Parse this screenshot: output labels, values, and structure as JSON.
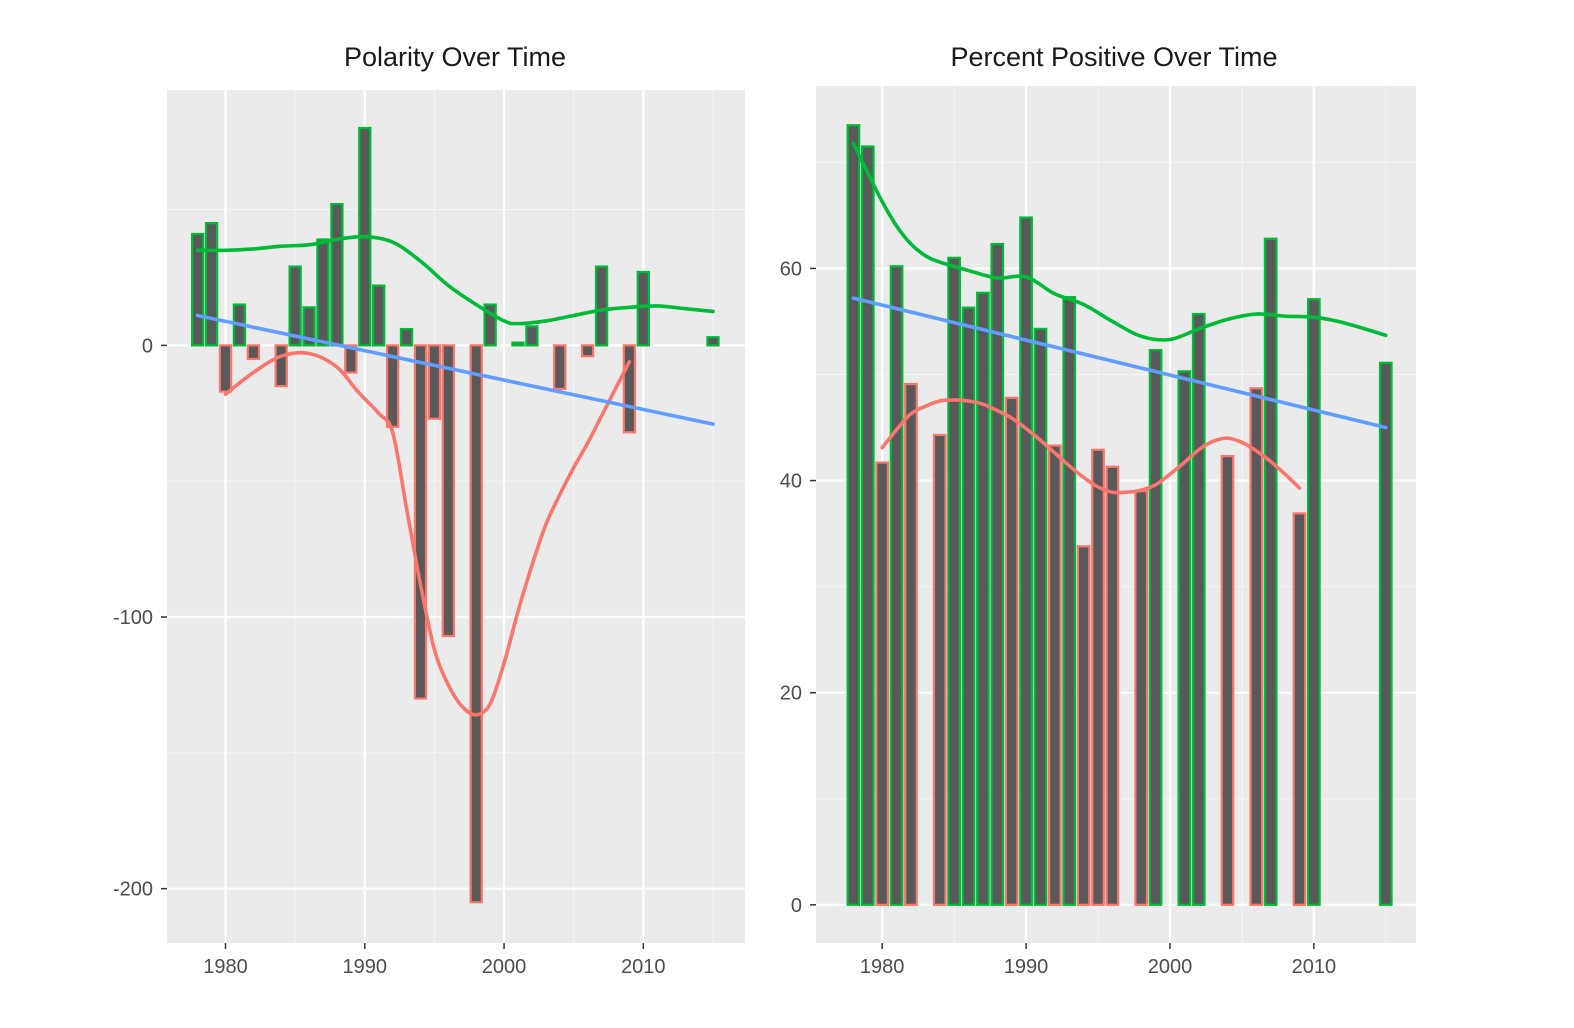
{
  "colors": {
    "panel": "#EBEBEB",
    "grid": "#FFFFFF",
    "bar_fill": "#595959",
    "positive": "#00BA38",
    "negative": "#F8766D",
    "trend": "#619CFF",
    "tick_text": "#4D4D4D",
    "title_text": "#1A1A1A"
  },
  "chart_data": [
    {
      "type": "bar",
      "title": "Polarity Over Time",
      "xlabel": "",
      "ylabel": "",
      "xlim": [
        1975.8,
        2017.3
      ],
      "ylim": [
        -220,
        94
      ],
      "x_ticks": [
        1980,
        1990,
        2000,
        2010
      ],
      "x_tick_labels": [
        "1980",
        "1990",
        "2000",
        "2010"
      ],
      "y_ticks": [
        0,
        -100,
        -200
      ],
      "y_tick_labels": [
        "0",
        "-100",
        "-200"
      ],
      "grid": true,
      "legend": "none",
      "bar_width": 0.8,
      "bars": [
        {
          "x": 1978,
          "value": 41,
          "sign": "positive"
        },
        {
          "x": 1979,
          "value": 45,
          "sign": "positive"
        },
        {
          "x": 1980,
          "value": -17,
          "sign": "negative"
        },
        {
          "x": 1981,
          "value": 15,
          "sign": "positive"
        },
        {
          "x": 1982,
          "value": -5,
          "sign": "negative"
        },
        {
          "x": 1984,
          "value": -15,
          "sign": "negative"
        },
        {
          "x": 1985,
          "value": 29,
          "sign": "positive"
        },
        {
          "x": 1986,
          "value": 14,
          "sign": "positive"
        },
        {
          "x": 1987,
          "value": 39,
          "sign": "positive"
        },
        {
          "x": 1988,
          "value": 52,
          "sign": "positive"
        },
        {
          "x": 1989,
          "value": -10,
          "sign": "negative"
        },
        {
          "x": 1990,
          "value": 80,
          "sign": "positive"
        },
        {
          "x": 1991,
          "value": 22,
          "sign": "positive"
        },
        {
          "x": 1992,
          "value": -30,
          "sign": "negative"
        },
        {
          "x": 1993,
          "value": 6,
          "sign": "positive"
        },
        {
          "x": 1994,
          "value": -130,
          "sign": "negative"
        },
        {
          "x": 1995,
          "value": -27,
          "sign": "negative"
        },
        {
          "x": 1996,
          "value": -107,
          "sign": "negative"
        },
        {
          "x": 1998,
          "value": -205,
          "sign": "negative"
        },
        {
          "x": 1999,
          "value": 15,
          "sign": "positive"
        },
        {
          "x": 2001,
          "value": 1,
          "sign": "positive"
        },
        {
          "x": 2002,
          "value": 7,
          "sign": "positive"
        },
        {
          "x": 2004,
          "value": -16,
          "sign": "negative"
        },
        {
          "x": 2006,
          "value": -4,
          "sign": "negative"
        },
        {
          "x": 2007,
          "value": 29,
          "sign": "positive"
        },
        {
          "x": 2009,
          "value": -32,
          "sign": "negative"
        },
        {
          "x": 2010,
          "value": 27,
          "sign": "positive"
        },
        {
          "x": 2015,
          "value": 3,
          "sign": "positive"
        }
      ],
      "lines": [
        {
          "kind": "smooth",
          "sign": "positive",
          "points": [
            [
              1978,
              35
            ],
            [
              1980,
              35
            ],
            [
              1982,
              35.5
            ],
            [
              1984,
              36.5
            ],
            [
              1986,
              37
            ],
            [
              1988,
              39
            ],
            [
              1990,
              40
            ],
            [
              1992,
              38
            ],
            [
              1994,
              31
            ],
            [
              1996,
              22
            ],
            [
              1998,
              15
            ],
            [
              2000,
              9
            ],
            [
              2001,
              8
            ],
            [
              2003,
              9
            ],
            [
              2005,
              11
            ],
            [
              2007,
              13
            ],
            [
              2009,
              14
            ],
            [
              2011,
              14.5
            ],
            [
              2013,
              13.5
            ],
            [
              2015,
              12.5
            ]
          ]
        },
        {
          "kind": "smooth",
          "sign": "negative",
          "points": [
            [
              1980,
              -18
            ],
            [
              1982,
              -10
            ],
            [
              1984,
              -4
            ],
            [
              1986,
              -3
            ],
            [
              1988,
              -8
            ],
            [
              1989.5,
              -17
            ],
            [
              1991,
              -25
            ],
            [
              1992,
              -32
            ],
            [
              1993,
              -60
            ],
            [
              1994,
              -88
            ],
            [
              1995,
              -112
            ],
            [
              1996,
              -125
            ],
            [
              1997,
              -133
            ],
            [
              1998,
              -136
            ],
            [
              1999,
              -132
            ],
            [
              2000,
              -117
            ],
            [
              2001,
              -98
            ],
            [
              2002,
              -81
            ],
            [
              2003,
              -66
            ],
            [
              2004,
              -55
            ],
            [
              2005,
              -45
            ],
            [
              2006,
              -36
            ],
            [
              2007,
              -26
            ],
            [
              2008,
              -16
            ],
            [
              2009,
              -6
            ]
          ]
        },
        {
          "kind": "linear",
          "sign": "trend",
          "points": [
            [
              1978,
              11
            ],
            [
              2015,
              -29
            ]
          ]
        }
      ]
    },
    {
      "type": "bar",
      "title": "Percent Positive Over Time",
      "xlabel": "",
      "ylabel": "",
      "xlim": [
        1975.4,
        2017.1
      ],
      "ylim": [
        -3.6,
        77.2
      ],
      "x_ticks": [
        1980,
        1990,
        2000,
        2010
      ],
      "x_tick_labels": [
        "1980",
        "1990",
        "2000",
        "2010"
      ],
      "y_ticks": [
        0,
        20,
        40,
        60
      ],
      "y_tick_labels": [
        "0",
        "20",
        "40",
        "60"
      ],
      "grid": true,
      "legend": "none",
      "bar_width": 0.8,
      "bars": [
        {
          "x": 1978,
          "value": 73.5,
          "sign": "positive"
        },
        {
          "x": 1979,
          "value": 71.5,
          "sign": "positive"
        },
        {
          "x": 1980,
          "value": 41.7,
          "sign": "negative"
        },
        {
          "x": 1981,
          "value": 60.2,
          "sign": "positive"
        },
        {
          "x": 1982,
          "value": 49.1,
          "sign": "negative"
        },
        {
          "x": 1984,
          "value": 44.3,
          "sign": "negative"
        },
        {
          "x": 1985,
          "value": 61.0,
          "sign": "positive"
        },
        {
          "x": 1986,
          "value": 56.3,
          "sign": "positive"
        },
        {
          "x": 1987,
          "value": 57.7,
          "sign": "positive"
        },
        {
          "x": 1988,
          "value": 62.3,
          "sign": "positive"
        },
        {
          "x": 1989,
          "value": 47.8,
          "sign": "negative"
        },
        {
          "x": 1990,
          "value": 64.8,
          "sign": "positive"
        },
        {
          "x": 1991,
          "value": 54.3,
          "sign": "positive"
        },
        {
          "x": 1992,
          "value": 43.3,
          "sign": "negative"
        },
        {
          "x": 1993,
          "value": 57.3,
          "sign": "positive"
        },
        {
          "x": 1994,
          "value": 33.8,
          "sign": "negative"
        },
        {
          "x": 1995,
          "value": 42.9,
          "sign": "negative"
        },
        {
          "x": 1996,
          "value": 41.3,
          "sign": "negative"
        },
        {
          "x": 1998,
          "value": 39.0,
          "sign": "negative"
        },
        {
          "x": 1999,
          "value": 52.3,
          "sign": "positive"
        },
        {
          "x": 2001,
          "value": 50.3,
          "sign": "positive"
        },
        {
          "x": 2002,
          "value": 55.7,
          "sign": "positive"
        },
        {
          "x": 2004,
          "value": 42.3,
          "sign": "negative"
        },
        {
          "x": 2006,
          "value": 48.7,
          "sign": "negative"
        },
        {
          "x": 2007,
          "value": 62.8,
          "sign": "positive"
        },
        {
          "x": 2009,
          "value": 36.9,
          "sign": "negative"
        },
        {
          "x": 2010,
          "value": 57.1,
          "sign": "positive"
        },
        {
          "x": 2015,
          "value": 51.1,
          "sign": "positive"
        }
      ],
      "lines": [
        {
          "kind": "smooth",
          "sign": "positive",
          "points": [
            [
              1978,
              71.8
            ],
            [
              1979,
              69
            ],
            [
              1980,
              66.3
            ],
            [
              1981,
              64
            ],
            [
              1982,
              62.3
            ],
            [
              1983,
              61.2
            ],
            [
              1984,
              60.6
            ],
            [
              1986,
              59.8
            ],
            [
              1988,
              59.1
            ],
            [
              1990,
              59.2
            ],
            [
              1992,
              57.6
            ],
            [
              1994,
              56.6
            ],
            [
              1996,
              55
            ],
            [
              1998,
              53.6
            ],
            [
              2000,
              53.3
            ],
            [
              2002,
              54.3
            ],
            [
              2004,
              55.2
            ],
            [
              2006,
              55.7
            ],
            [
              2008,
              55.5
            ],
            [
              2010,
              55.4
            ],
            [
              2012,
              54.9
            ],
            [
              2015,
              53.7
            ]
          ]
        },
        {
          "kind": "smooth",
          "sign": "negative",
          "points": [
            [
              1980,
              43.1
            ],
            [
              1981,
              44.8
            ],
            [
              1982,
              46.3
            ],
            [
              1983,
              47.0
            ],
            [
              1984,
              47.5
            ],
            [
              1985,
              47.6
            ],
            [
              1986,
              47.5
            ],
            [
              1987,
              47.2
            ],
            [
              1988,
              46.6
            ],
            [
              1989,
              45.9
            ],
            [
              1990,
              44.9
            ],
            [
              1991,
              43.8
            ],
            [
              1992,
              42.6
            ],
            [
              1993,
              41.4
            ],
            [
              1994,
              40.3
            ],
            [
              1995,
              39.4
            ],
            [
              1996,
              38.9
            ],
            [
              1997,
              38.9
            ],
            [
              1998,
              39.1
            ],
            [
              1999,
              39.6
            ],
            [
              2000,
              40.6
            ],
            [
              2001,
              41.7
            ],
            [
              2002,
              42.9
            ],
            [
              2003,
              43.7
            ],
            [
              2004,
              44.0
            ],
            [
              2005,
              43.6
            ],
            [
              2006,
              42.8
            ],
            [
              2007,
              41.8
            ],
            [
              2008,
              40.6
            ],
            [
              2009,
              39.3
            ]
          ]
        },
        {
          "kind": "linear",
          "sign": "trend",
          "points": [
            [
              1978,
              57.2
            ],
            [
              2015,
              45.0
            ]
          ]
        }
      ]
    }
  ]
}
